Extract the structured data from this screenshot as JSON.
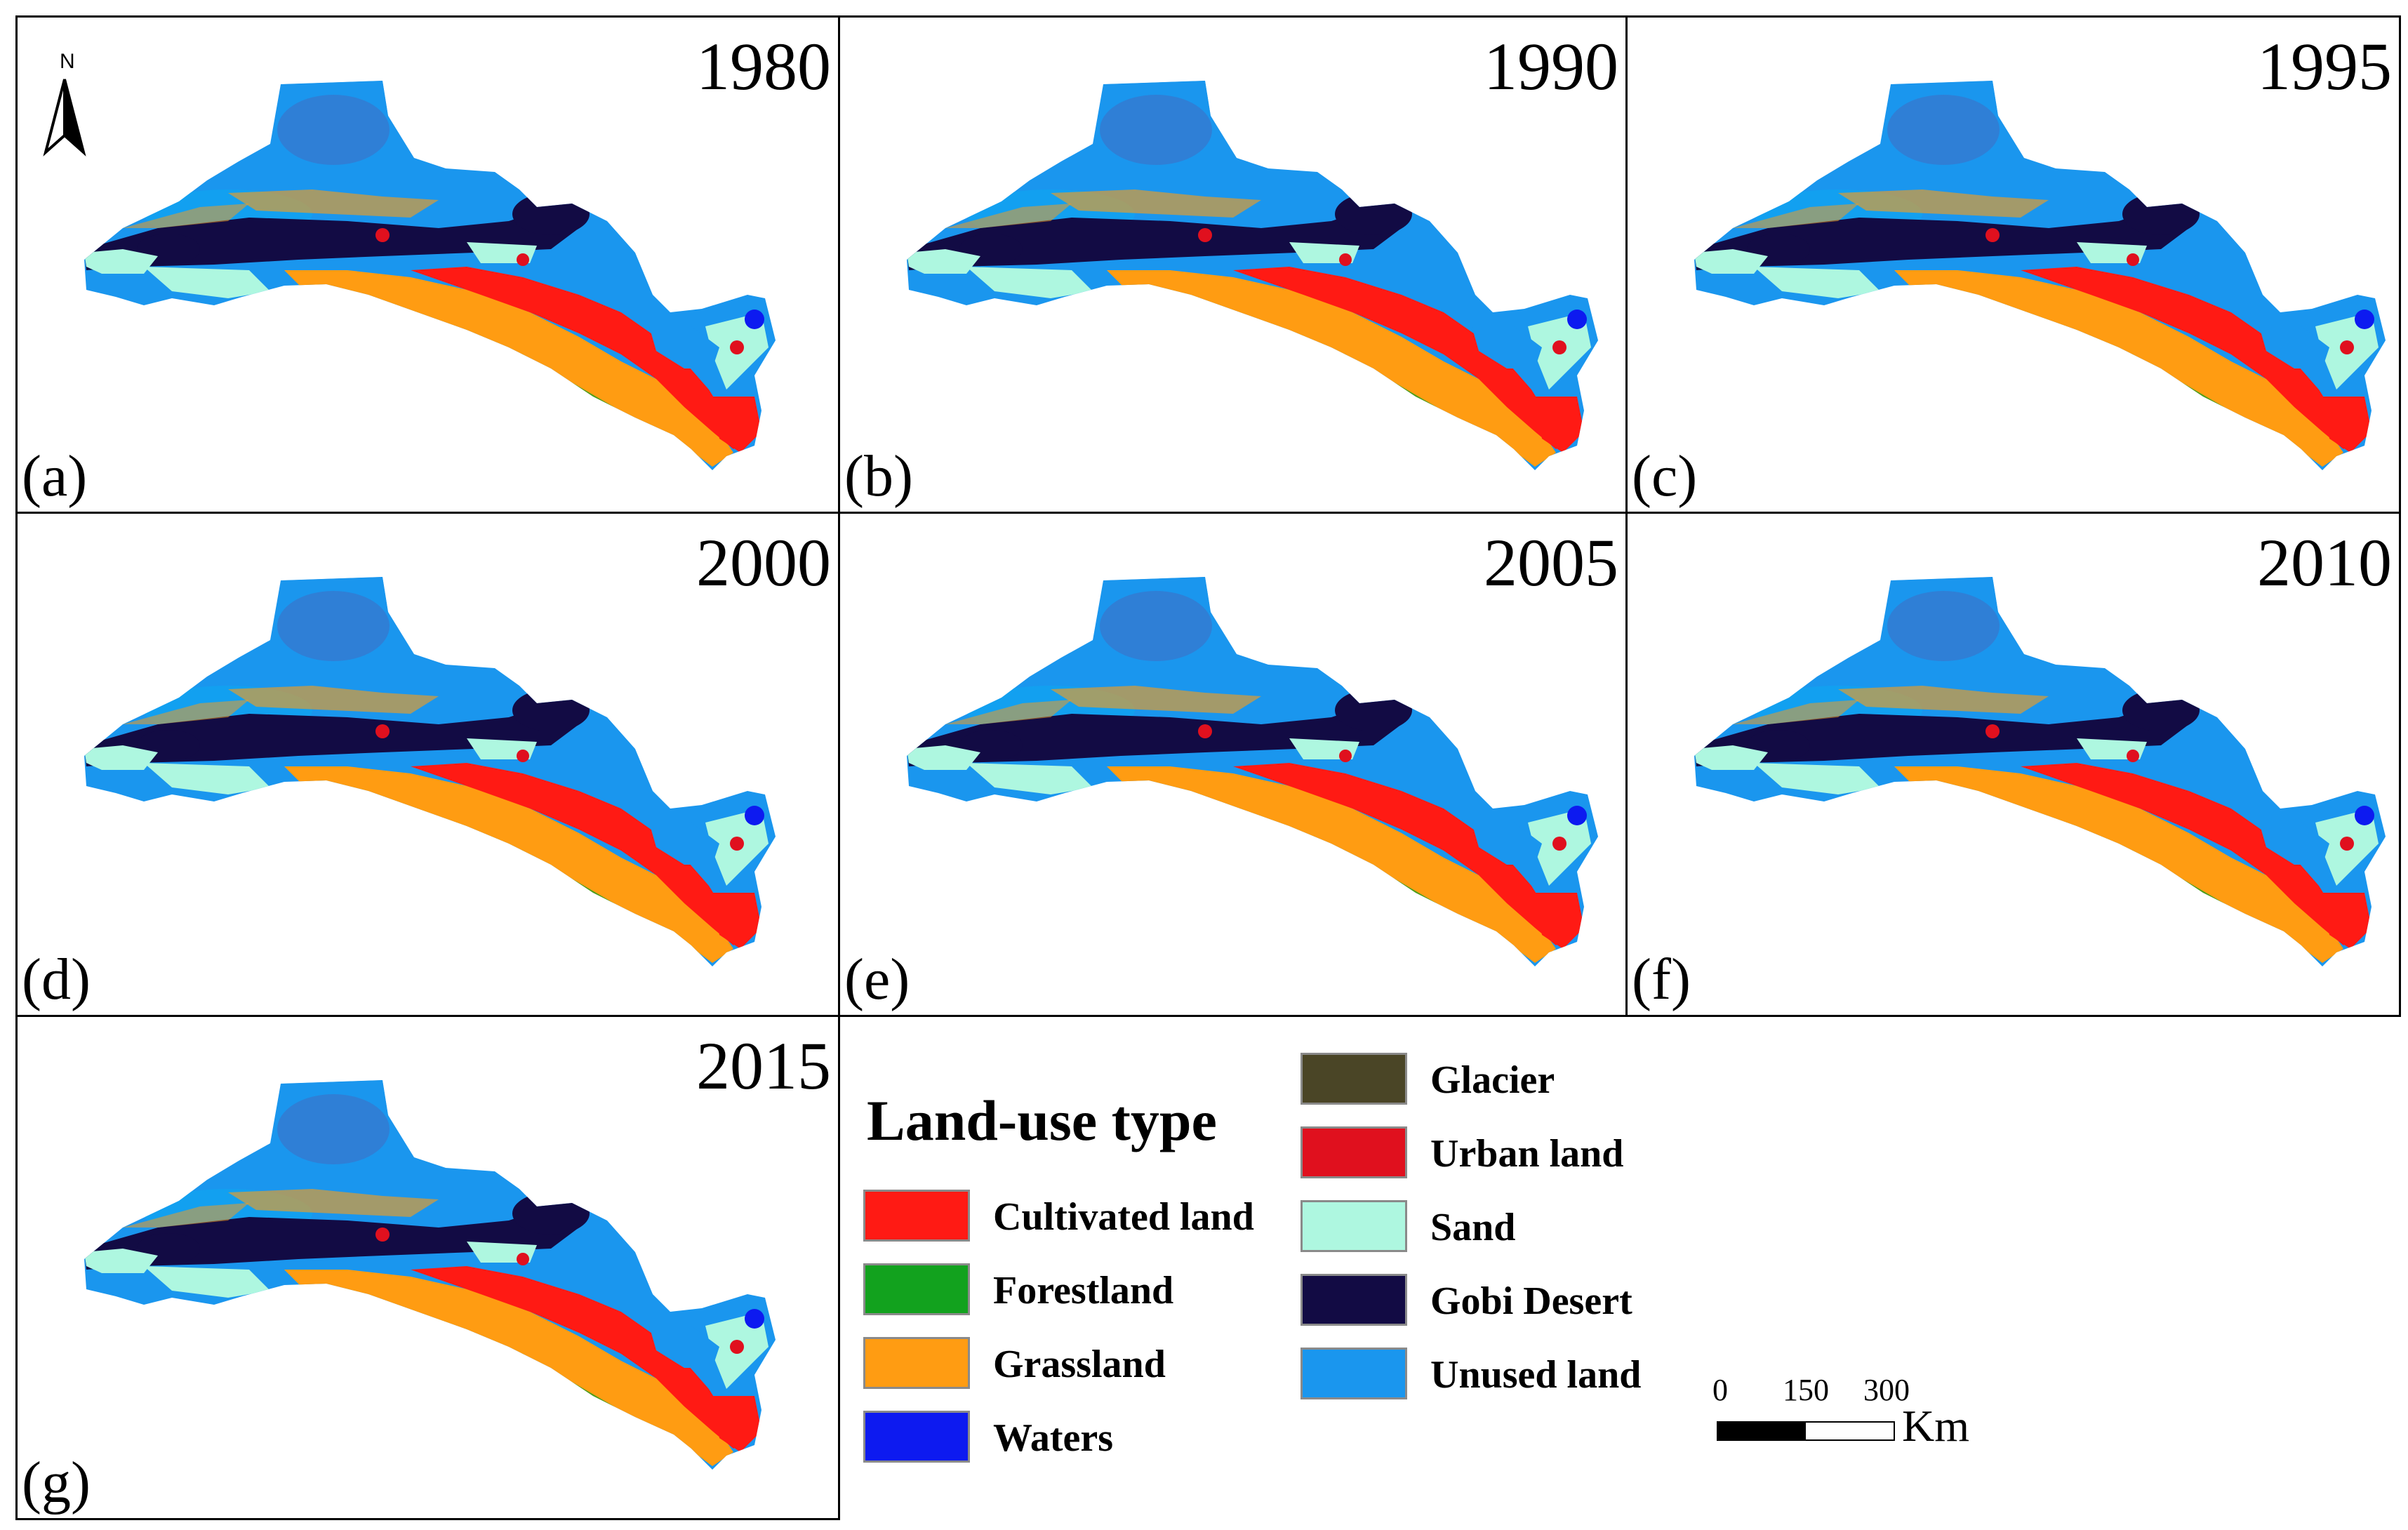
{
  "panels": [
    {
      "year": "1980",
      "label": "(a)"
    },
    {
      "year": "1990",
      "label": "(b)"
    },
    {
      "year": "1995",
      "label": "(c)"
    },
    {
      "year": "2000",
      "label": "(d)"
    },
    {
      "year": "2005",
      "label": "(e)"
    },
    {
      "year": "2010",
      "label": "(f)"
    },
    {
      "year": "2015",
      "label": "(g)"
    }
  ],
  "north_arrow": {
    "label": "N"
  },
  "legend": {
    "title": "Land-use type",
    "items": [
      {
        "label": "Cultivated land",
        "color": "#ff1a14"
      },
      {
        "label": "Forestland",
        "color": "#12a21e"
      },
      {
        "label": "Grassland",
        "color": "#ff9c12"
      },
      {
        "label": "Waters",
        "color": "#0d1af0"
      },
      {
        "label": "Glacier",
        "color": "#4a4526"
      },
      {
        "label": "Urban land",
        "color": "#e0101e"
      },
      {
        "label": "Sand",
        "color": "#aef7e0"
      },
      {
        "label": "Gobi Desert",
        "color": "#120b44"
      },
      {
        "label": "Unused land",
        "color": "#1a96ee"
      }
    ]
  },
  "scale_bar": {
    "ticks": [
      "0",
      "150",
      "300"
    ],
    "unit": "Km"
  }
}
